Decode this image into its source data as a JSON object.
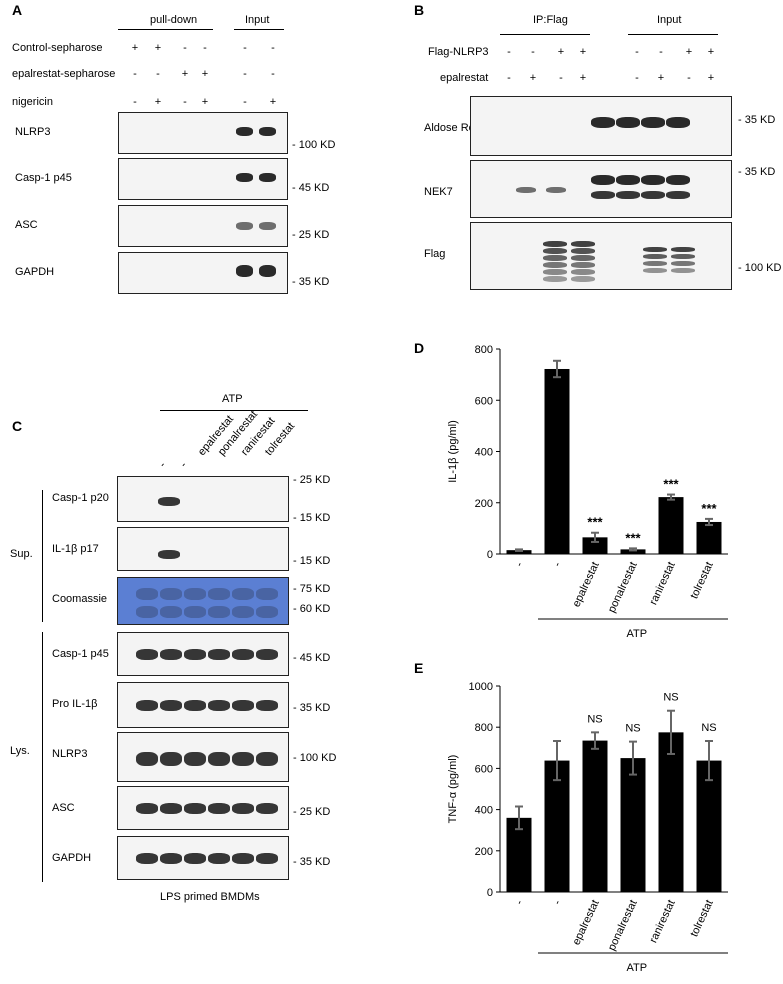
{
  "panel_a": {
    "letter": "A",
    "header_pulldown": "pull-down",
    "header_input": "Input",
    "row_labels": [
      "Control-sepharose",
      "epalrestat-sepharose",
      "nigericin"
    ],
    "signs": [
      [
        "+",
        "+",
        "-",
        "-",
        "-",
        "-"
      ],
      [
        "-",
        "-",
        "+",
        "+",
        "-",
        "-"
      ],
      [
        "-",
        "+",
        "-",
        "+",
        "-",
        "+"
      ]
    ],
    "blots": [
      {
        "label": "NLRP3",
        "marker": "- 100 KD"
      },
      {
        "label": "Casp-1 p45",
        "marker": "- 45 KD"
      },
      {
        "label": "ASC",
        "marker": "- 25 KD"
      },
      {
        "label": "GAPDH",
        "marker": "- 35 KD"
      }
    ]
  },
  "panel_b": {
    "letter": "B",
    "header_ip": "IP:Flag",
    "header_input": "Input",
    "row_labels": [
      "Flag-NLRP3",
      "epalrestat"
    ],
    "signs": [
      [
        "-",
        "-",
        "+",
        "+",
        "-",
        "-",
        "+",
        "+"
      ],
      [
        "-",
        "+",
        "-",
        "+",
        "-",
        "+",
        "-",
        "+"
      ]
    ],
    "blots": [
      {
        "label": "Aldose Reductase",
        "marker": "- 35 KD"
      },
      {
        "label": "NEK7",
        "marker": "- 35 KD"
      },
      {
        "label": "Flag",
        "marker": "- 100 KD"
      }
    ]
  },
  "panel_c": {
    "letter": "C",
    "header_atp": "ATP",
    "lane_labels": [
      "-",
      "-",
      "epalrestat",
      "ponalrestat",
      "ranirestat",
      "tolrestat"
    ],
    "sup_label": "Sup.",
    "lys_label": "Lys.",
    "sup_blots": [
      {
        "label": "Casp-1 p20",
        "markers": [
          "- 25 KD",
          "- 15 KD"
        ]
      },
      {
        "label": "IL-1β p17",
        "markers": [
          "- 15 KD"
        ]
      },
      {
        "label": "Coomassie",
        "markers": [
          "- 75 KD",
          "- 60 KD"
        ]
      }
    ],
    "lys_blots": [
      {
        "label": "Casp-1 p45",
        "marker": "- 45 KD"
      },
      {
        "label": "Pro IL-1β",
        "marker": "- 35 KD"
      },
      {
        "label": "NLRP3",
        "marker": "- 100 KD"
      },
      {
        "label": "ASC",
        "marker": "- 25 KD"
      },
      {
        "label": "GAPDH",
        "marker": "- 35 KD"
      }
    ],
    "footer": "LPS primed BMDMs"
  },
  "chart_data": [
    {
      "type": "bar",
      "panel": "D",
      "categories": [
        "-",
        "-",
        "epalrestat",
        "ponalrestat",
        "ranirestat",
        "tolrestat"
      ],
      "values": [
        15,
        722,
        65,
        18,
        222,
        125
      ],
      "errors": [
        3,
        32,
        18,
        4,
        10,
        12
      ],
      "annotations": [
        "",
        "",
        "***",
        "***",
        "***",
        "***"
      ],
      "ylabel": "IL-1β (pg/ml)",
      "ylim": [
        0,
        800
      ],
      "yticks": [
        0,
        200,
        400,
        600,
        800
      ],
      "group_label": "ATP"
    },
    {
      "type": "bar",
      "panel": "E",
      "categories": [
        "-",
        "-",
        "epalrestat",
        "ponalrestat",
        "ranirestat",
        "tolrestat"
      ],
      "values": [
        360,
        638,
        735,
        650,
        775,
        638
      ],
      "errors": [
        55,
        95,
        40,
        80,
        105,
        95
      ],
      "annotations": [
        "",
        "",
        "NS",
        "NS",
        "NS",
        "NS"
      ],
      "ylabel": "TNF-α (pg/ml)",
      "ylim": [
        0,
        1000
      ],
      "yticks": [
        0,
        200,
        400,
        600,
        800,
        1000
      ],
      "group_label": "ATP"
    }
  ]
}
